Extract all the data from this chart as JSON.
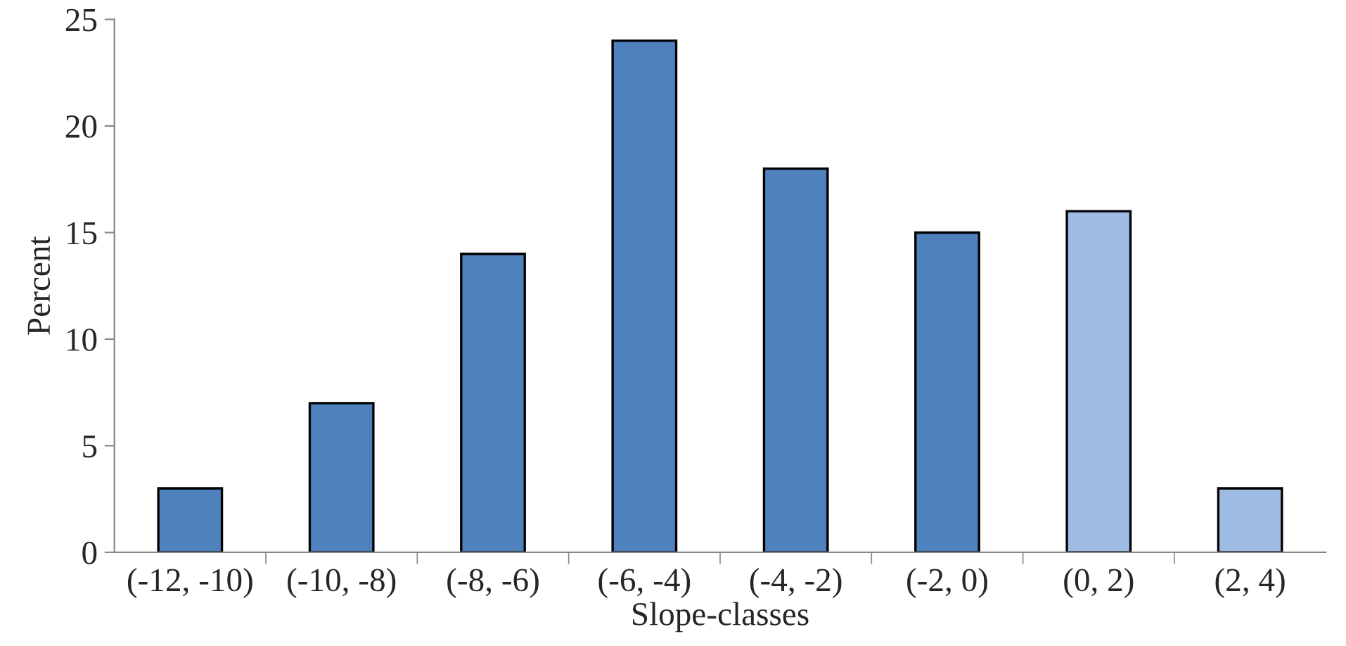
{
  "chart_data": {
    "type": "bar",
    "xlabel": "Slope-classes",
    "ylabel": "Percent",
    "categories": [
      "(-12, -10)",
      "(-10, -8)",
      "(-8, -6)",
      "(-6, -4)",
      "(-4, -2)",
      "(-2, 0)",
      "(0, 2)",
      "(2, 4)"
    ],
    "values": [
      3,
      7,
      14,
      24,
      18,
      15,
      16,
      3
    ],
    "colors": [
      "#4f81bd",
      "#4f81bd",
      "#4f81bd",
      "#4f81bd",
      "#4f81bd",
      "#4f81bd",
      "#9dbbe3",
      "#9dbbe3"
    ],
    "ylim": [
      0,
      25
    ],
    "yticks": [
      0,
      5,
      10,
      15,
      20,
      25
    ],
    "grid": false
  }
}
